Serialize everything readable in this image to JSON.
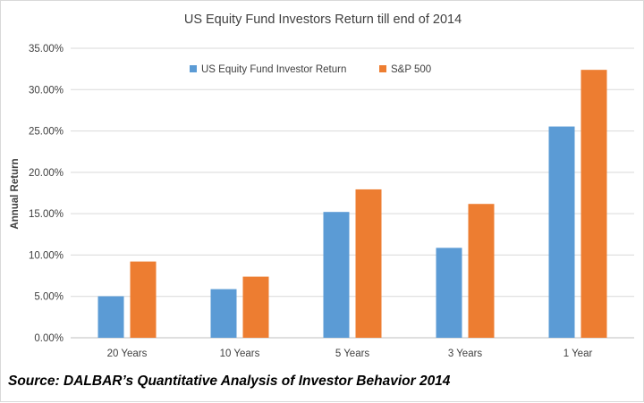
{
  "colors": {
    "series1": "#5b9bd5",
    "series2": "#ed7d31",
    "grid": "#d9d9d9",
    "axis_text": "#404040"
  },
  "source_text": "Source: DALBAR’s Quantitative Analysis of Investor Behavior 2014",
  "chart_data": {
    "type": "bar",
    "title": "US Equity Fund Investors Return till end of 2014",
    "xlabel": "",
    "ylabel": "Annual Return",
    "categories": [
      "20 Years",
      "10 Years",
      "5 Years",
      "3 Years",
      "1 Year"
    ],
    "series": [
      {
        "name": "US Equity Fund Investor Return",
        "values": [
          5.02,
          5.88,
          15.21,
          10.87,
          25.54
        ]
      },
      {
        "name": "S&P 500",
        "values": [
          9.22,
          7.39,
          17.94,
          16.18,
          32.39
        ]
      }
    ],
    "ylim": [
      0,
      35
    ],
    "ytick_labels": [
      "0.00%",
      "5.00%",
      "10.00%",
      "15.00%",
      "20.00%",
      "25.00%",
      "30.00%",
      "35.00%"
    ],
    "grid": true,
    "legend_position": "top"
  }
}
